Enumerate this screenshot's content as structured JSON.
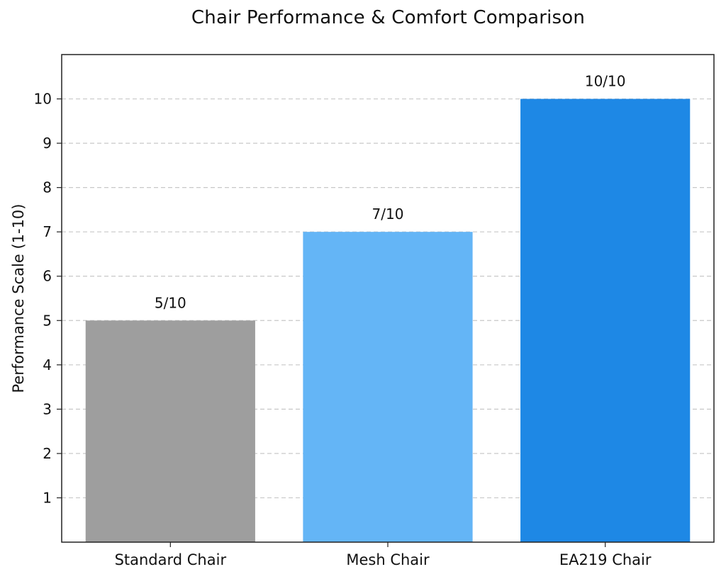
{
  "chart_data": {
    "type": "bar",
    "title": "Chair Performance & Comfort Comparison",
    "xlabel": "",
    "ylabel": "Performance Scale (1-10)",
    "categories": [
      "Standard Chair",
      "Mesh Chair",
      "EA219 Chair"
    ],
    "values": [
      5,
      7,
      10
    ],
    "value_labels": [
      "5/10",
      "7/10",
      "10/10"
    ],
    "bar_colors": [
      "#9e9e9e",
      "#64b5f6",
      "#1e88e5"
    ],
    "ylim": [
      0,
      11
    ],
    "yticks": [
      1,
      2,
      3,
      4,
      5,
      6,
      7,
      8,
      9,
      10
    ],
    "grid": true,
    "grid_axis": "y",
    "legend": "none"
  }
}
